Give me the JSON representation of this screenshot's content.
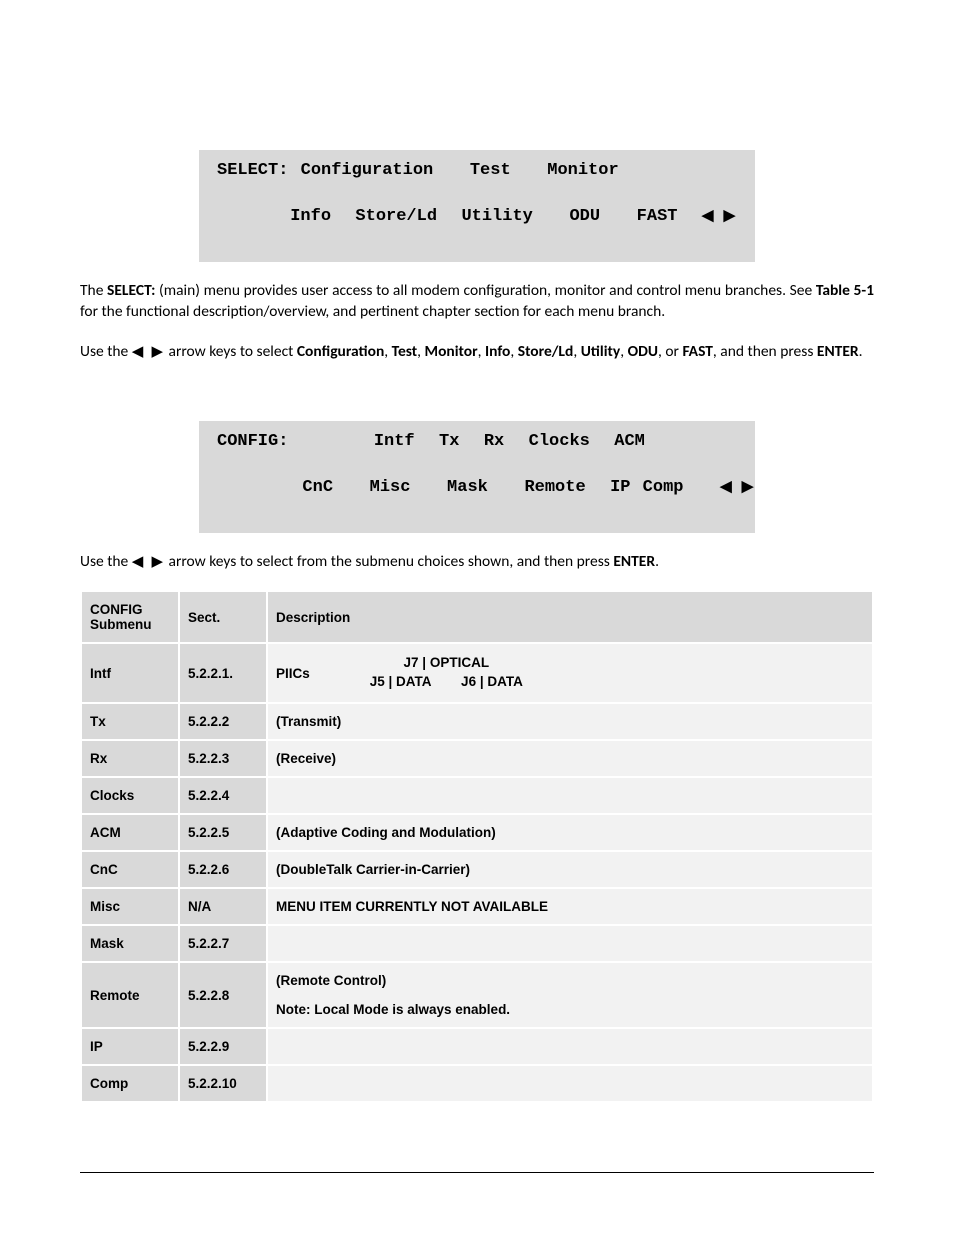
{
  "display1": {
    "line1": "SELECT: Configuration   Test   Monitor",
    "line2": "Info  Store/Ld  Utility   ODU   FAST  "
  },
  "para1_parts": {
    "p1": "The ",
    "b1": "SELECT:",
    "p2": " (main) menu provides user access to all modem configuration, monitor and control menu branches. See ",
    "b2": "Table 5-1",
    "p3": " for the functional description/overview, and pertinent chapter section for each menu branch."
  },
  "para2_parts": {
    "p1": "Use the ",
    "p2": " arrow keys to select ",
    "b1": "Configuration",
    "c1": ", ",
    "b2": "Test",
    "c2": ", ",
    "b3": "Monitor",
    "c3": ", ",
    "b4": "Info",
    "c4": ", ",
    "b5": "Store/Ld",
    "c5": ", ",
    "b6": "Utility",
    "c6": ", ",
    "b7": "ODU",
    "c7": ", or ",
    "b8": "FAST",
    "p3": ", and then press ",
    "b9": "ENTER",
    "p4": "."
  },
  "display2": {
    "line1": "CONFIG:       Intf  Tx  Rx  Clocks  ACM",
    "line2": " CnC   Misc   Mask   Remote  IP Comp   "
  },
  "para3_parts": {
    "p1": "Use the ",
    "p2": " arrow keys to select from the submenu choices shown, and then press ",
    "b1": "ENTER",
    "p3": "."
  },
  "table": {
    "headers": {
      "a": "CONFIG Submenu",
      "b": "Sect.",
      "c": "Description"
    },
    "rows": [
      {
        "a": "Intf",
        "b": "5.2.2.1.",
        "c_type": "intf",
        "c_left": "PIICs",
        "c_r1": "J7 | OPTICAL",
        "c_r2": "J5 | DATA        J6 | DATA"
      },
      {
        "a": "Tx",
        "b": "5.2.2.2",
        "c": "(Transmit)"
      },
      {
        "a": "Rx",
        "b": "5.2.2.3",
        "c": "(Receive)"
      },
      {
        "a": "Clocks",
        "b": "5.2.2.4",
        "c": ""
      },
      {
        "a": "ACM",
        "b": "5.2.2.5",
        "c": "(Adaptive Coding and Modulation)"
      },
      {
        "a": "CnC",
        "b": "5.2.2.6",
        "c": "(DoubleTalk Carrier-in-Carrier)"
      },
      {
        "a": "Misc",
        "b": "N/A",
        "c": "MENU ITEM CURRENTLY NOT AVAILABLE"
      },
      {
        "a": "Mask",
        "b": "5.2.2.7",
        "c": ""
      },
      {
        "a": "Remote",
        "b": "5.2.2.8",
        "c_type": "remote",
        "c_l1": "(Remote Control)",
        "c_l2": "Note: Local Mode is always enabled."
      },
      {
        "a": "IP",
        "b": "5.2.2.9",
        "c": ""
      },
      {
        "a": "Comp",
        "b": "5.2.2.10",
        "c": ""
      }
    ]
  },
  "arrows_glyph": "◀ ▶"
}
